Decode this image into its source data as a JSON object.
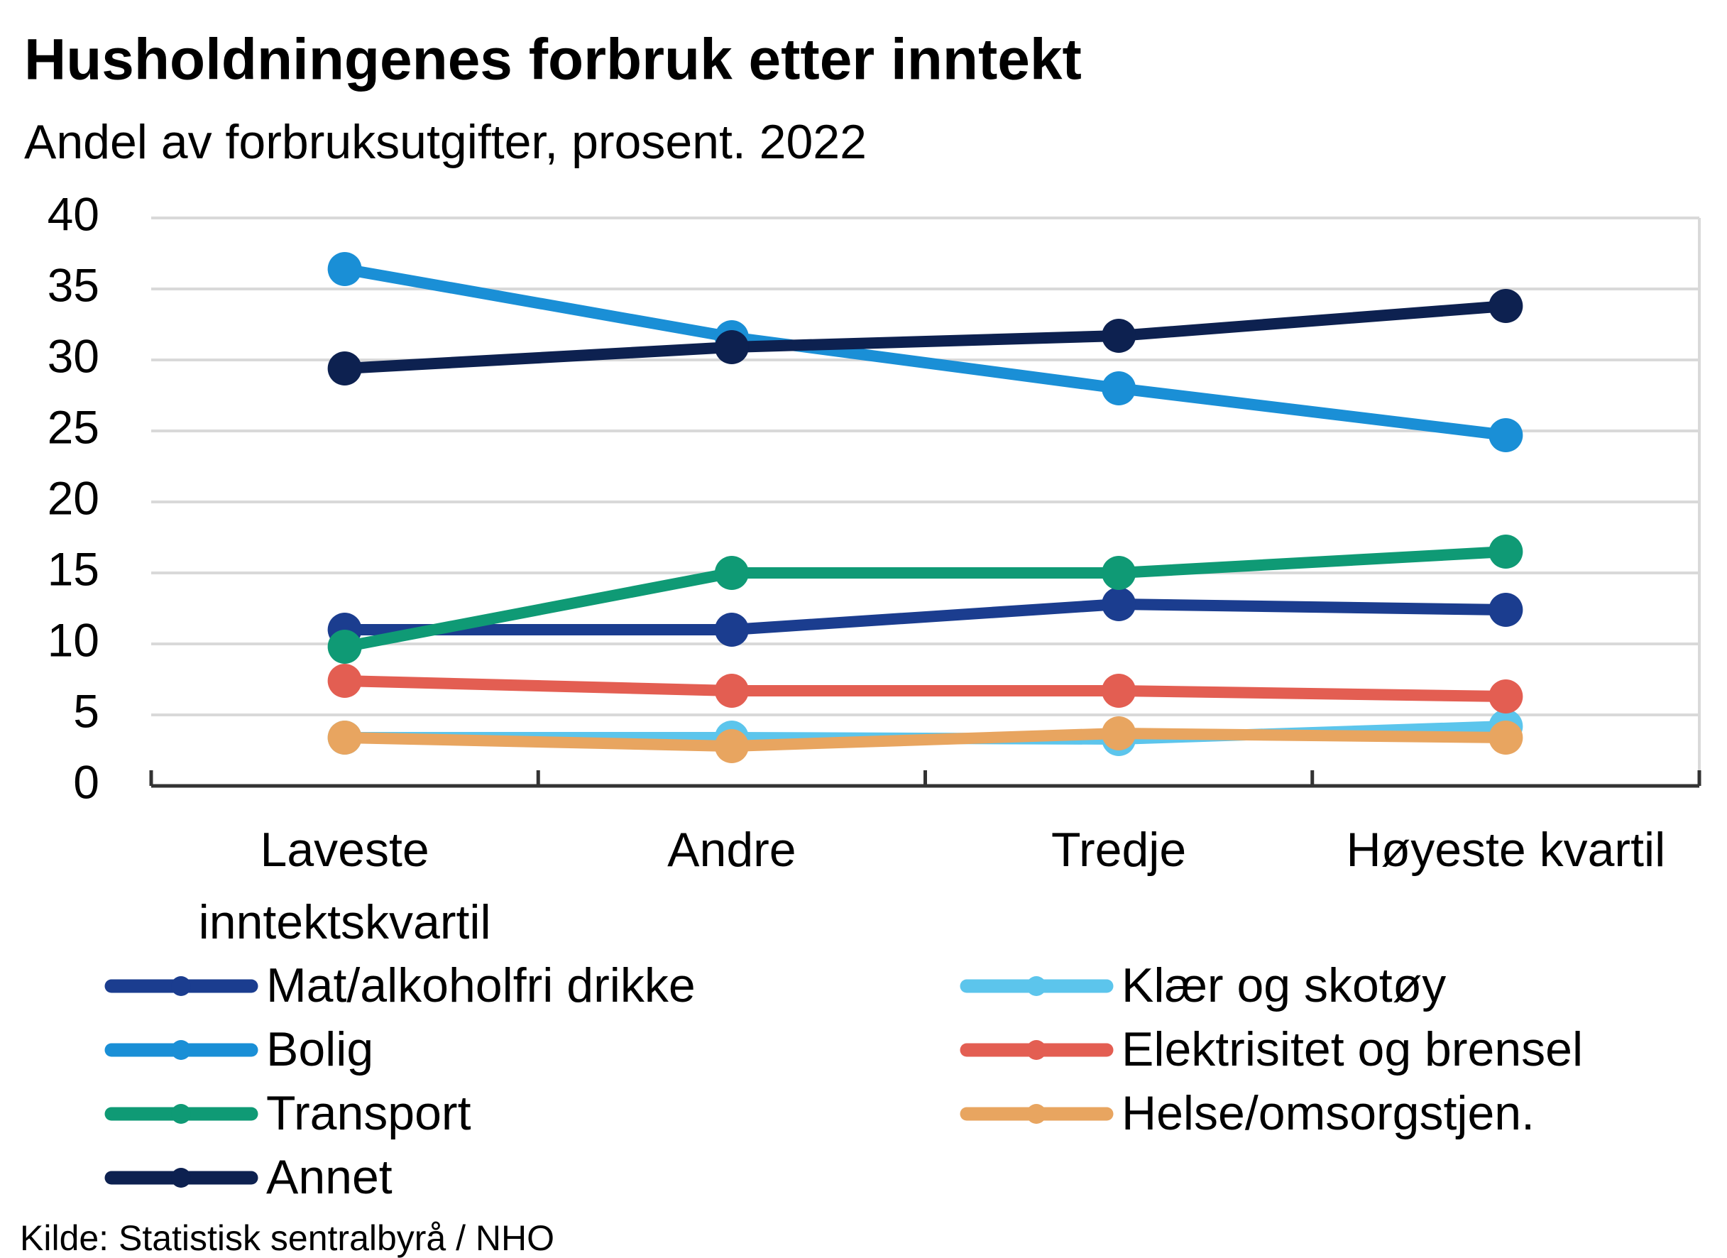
{
  "chart_data": {
    "type": "line",
    "title": "Husholdningenes forbruk etter inntekt",
    "subtitle": "Andel av forbruksutgifter, prosent. 2022",
    "source": "Kilde: Statistisk sentralbyrå / NHO",
    "categories": [
      "Laveste inntektskvartil",
      "Andre",
      "Tredje",
      "Høyeste kvartil"
    ],
    "series": [
      {
        "name": "Mat/alkoholfri drikke",
        "color": "#1b3d8f",
        "values": [
          11.0,
          11.0,
          12.8,
          12.4
        ]
      },
      {
        "name": "Bolig",
        "color": "#1a8fd6",
        "values": [
          36.4,
          31.6,
          28.0,
          24.7
        ]
      },
      {
        "name": "Transport",
        "color": "#0f9a75",
        "values": [
          9.8,
          15.0,
          15.0,
          16.5
        ]
      },
      {
        "name": "Annet",
        "color": "#0d2150",
        "values": [
          29.4,
          30.9,
          31.7,
          33.8
        ]
      },
      {
        "name": "Klær og skotøy",
        "color": "#5cc5ec",
        "values": [
          3.4,
          3.4,
          3.3,
          4.2
        ]
      },
      {
        "name": "Elektrisitet og brensel",
        "color": "#e35e52",
        "values": [
          7.4,
          6.7,
          6.7,
          6.3
        ]
      },
      {
        "name": "Helse/omsorgstjen.",
        "color": "#e8a560",
        "values": [
          3.4,
          2.8,
          3.7,
          3.4
        ]
      }
    ],
    "ylim": [
      0,
      40
    ],
    "yticks": [
      0,
      5,
      10,
      15,
      20,
      25,
      30,
      35,
      40
    ],
    "grid": true
  }
}
